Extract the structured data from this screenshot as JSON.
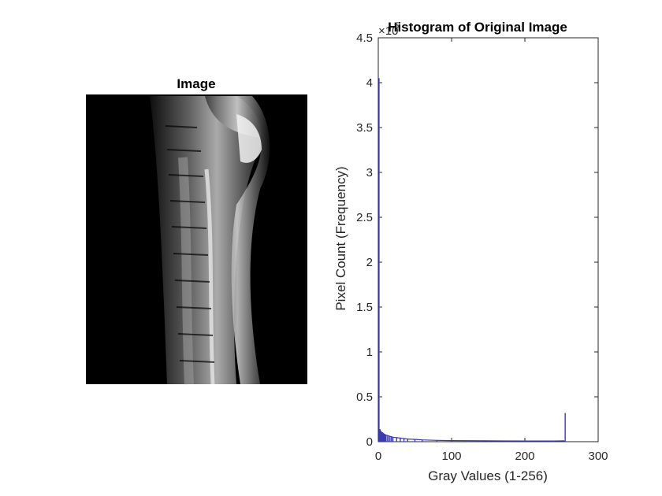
{
  "image_panel": {
    "title": "Image"
  },
  "chart_data": {
    "type": "histogram",
    "title": "Histogram of Original Image",
    "xlabel": "Gray Values (1-256)",
    "ylabel": "Pixel Count (Frequency)",
    "y_exponent_label": "×10",
    "y_exponent_value": "5",
    "xlim": [
      0,
      300
    ],
    "ylim": [
      0,
      4.5
    ],
    "xticks": [
      0,
      100,
      200,
      300
    ],
    "xtick_labels": [
      "0",
      "100",
      "200",
      "300"
    ],
    "yticks": [
      0,
      0.5,
      1,
      1.5,
      2,
      2.5,
      3,
      3.5,
      4,
      4.5
    ],
    "ytick_labels": [
      "0",
      "0.5",
      "1",
      "1.5",
      "2",
      "2.5",
      "3",
      "3.5",
      "4",
      "4.5"
    ],
    "series_color": "#3b3bb0",
    "grid": false,
    "bins": [
      [
        1,
        4.05
      ],
      [
        2,
        0.14
      ],
      [
        3,
        0.12
      ],
      [
        4,
        0.11
      ],
      [
        5,
        0.1
      ],
      [
        6,
        0.1
      ],
      [
        7,
        0.09
      ],
      [
        8,
        0.085
      ],
      [
        9,
        0.08
      ],
      [
        10,
        0.075
      ],
      [
        12,
        0.07
      ],
      [
        14,
        0.065
      ],
      [
        16,
        0.06
      ],
      [
        18,
        0.055
      ],
      [
        20,
        0.05
      ],
      [
        25,
        0.045
      ],
      [
        30,
        0.04
      ],
      [
        35,
        0.035
      ],
      [
        40,
        0.03
      ],
      [
        50,
        0.025
      ],
      [
        60,
        0.02
      ],
      [
        80,
        0.015
      ],
      [
        100,
        0.012
      ],
      [
        150,
        0.01
      ],
      [
        200,
        0.008
      ],
      [
        240,
        0.008
      ],
      [
        254,
        0.01
      ],
      [
        255,
        0.32
      ],
      [
        256,
        0.0
      ]
    ]
  }
}
